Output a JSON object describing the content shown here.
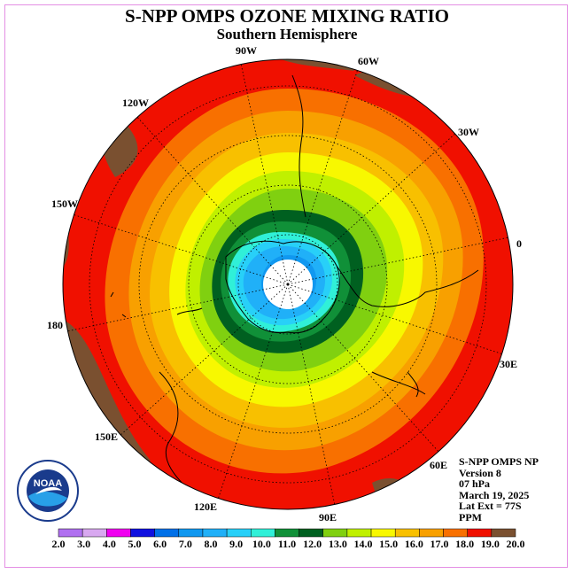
{
  "title": "S-NPP OMPS OZONE MIXING RATIO",
  "subtitle": "Southern Hemisphere",
  "longitude_labels": [
    "90W",
    "60W",
    "30W",
    "0",
    "30E",
    "60E",
    "90E",
    "120E",
    "150E",
    "180",
    "150W",
    "120W"
  ],
  "info": {
    "instrument": "S-NPP OMPS NP",
    "version": "Version 8",
    "pressure": "07 hPa",
    "date": "March 19, 2025",
    "lat_ext": "Lat Ext = 77S",
    "units": "PPM"
  },
  "logo_text": "NOAA",
  "colorbar": {
    "labels": [
      "2.0",
      "3.0",
      "4.0",
      "5.0",
      "6.0",
      "7.0",
      "8.0",
      "9.0",
      "10.0",
      "11.0",
      "12.0",
      "13.0",
      "14.0",
      "15.0",
      "16.0",
      "17.0",
      "18.0",
      "19.0",
      "20.0"
    ],
    "colors": [
      "#b070f0",
      "#d8a8f0",
      "#f000f0",
      "#1010e0",
      "#0070e8",
      "#1098f0",
      "#20b0f8",
      "#28d0f8",
      "#30f0d8",
      "#109038",
      "#006020",
      "#80d010",
      "#c0f000",
      "#f8f800",
      "#f8c000",
      "#f8a000",
      "#f87000",
      "#f01000",
      "#7a5030"
    ]
  }
}
